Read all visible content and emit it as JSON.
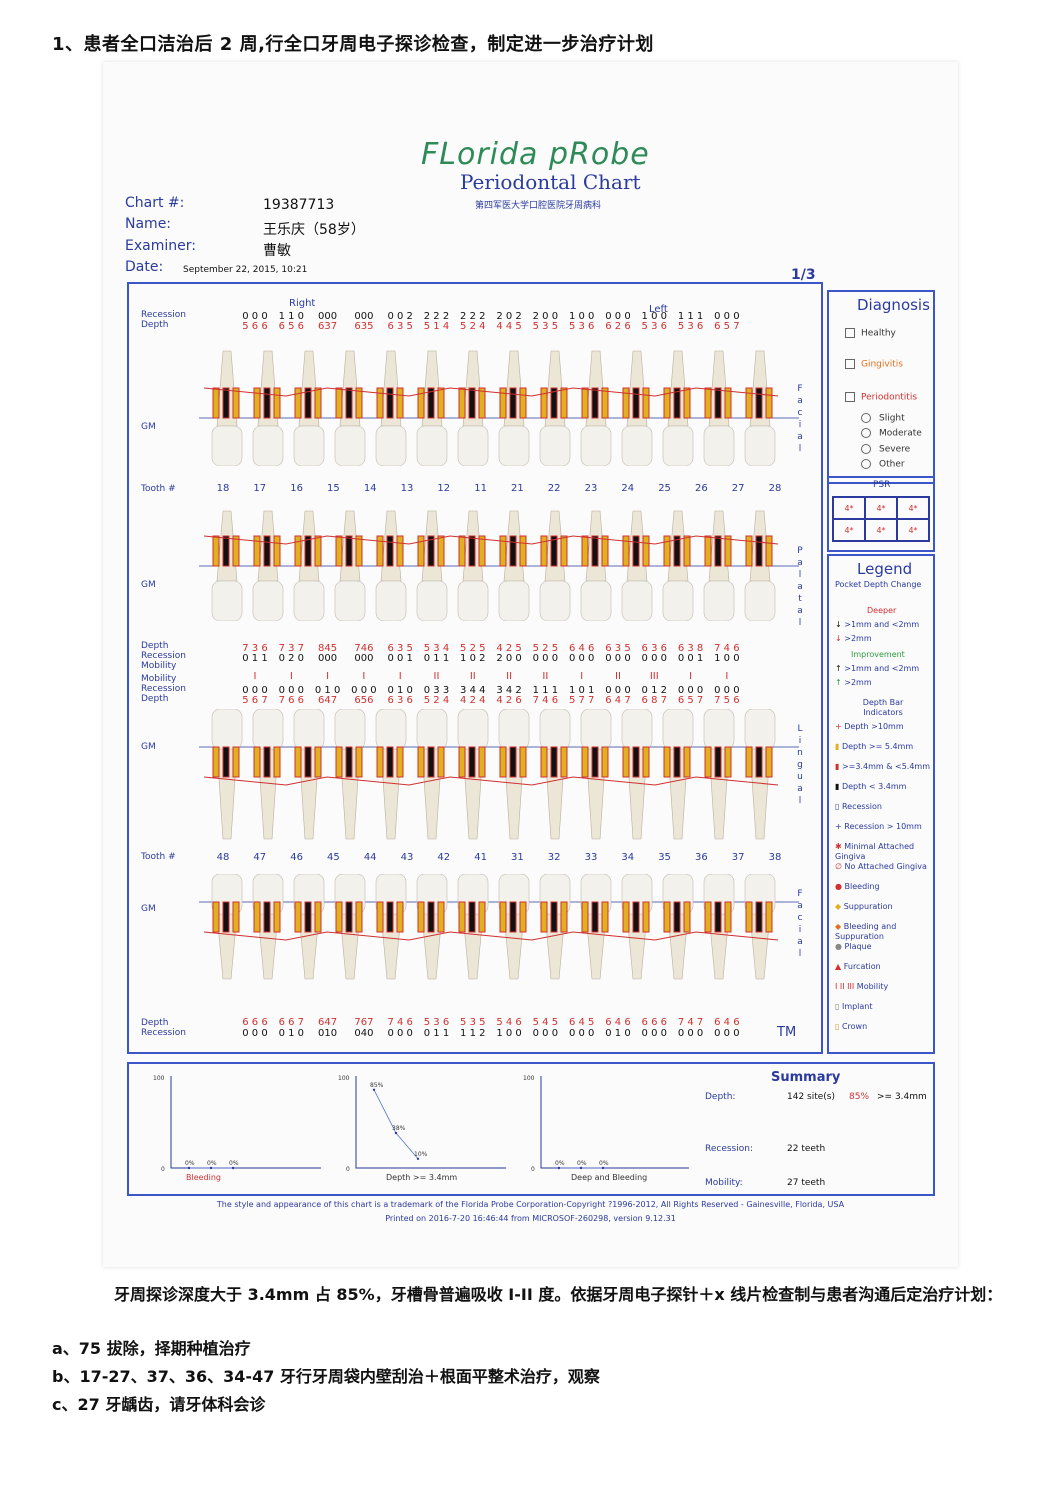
{
  "heading": "1、患者全口洁治后 2 周,行全口牙周电子探诊检查，制定进一步治疗计划",
  "chart": {
    "logo": "FLorida pRobe",
    "title": "Periodontal Chart",
    "hospital": "第四军医大学口腔医院牙周病科",
    "chart_no_label": "Chart #:",
    "chart_no": "19387713",
    "name_label": "Name:",
    "name": "王乐庆（58岁）",
    "examiner_label": "Examiner:",
    "examiner": "曹敏",
    "date_label": "Date:",
    "date": "September 22, 2015, 10:21",
    "page": "1/3",
    "tm": "TM"
  },
  "upper": {
    "labels": [
      "Recession",
      "Depth"
    ],
    "right": "Right",
    "left": "Left",
    "recession": [
      "0 0 0",
      "1 1 0",
      "000",
      "000",
      "0 0 2",
      "2 2 2",
      "2 2 2",
      "2 0 2",
      "2 0 0",
      "1 0 0",
      "0 0 0",
      "1 0 0",
      "1 1 1",
      "0 0 0"
    ],
    "depth": [
      "5 6 6",
      "6 5 6",
      "637",
      "635",
      "6 3 5",
      "5 1 4",
      "5 2 4",
      "4 4 5",
      "5 3 5",
      "5 3 6",
      "6 2 6",
      "5 3 6",
      "5 3 6",
      "6 5 7"
    ],
    "gm": "GM",
    "tooth_label": "Tooth #",
    "teeth": [
      "18",
      "17",
      "16",
      "15",
      "14",
      "13",
      "12",
      "11",
      "21",
      "22",
      "23",
      "24",
      "25",
      "26",
      "27",
      "28"
    ],
    "palatal_gm": "GM",
    "p_depth": [
      "7 3 6",
      "7 3 7",
      "845",
      "746",
      "6 3 5",
      "5 3 4",
      "5 2 5",
      "4 2 5",
      "5 2 5",
      "6 4 6",
      "6 3 5",
      "6 3 6",
      "6 3 8",
      "7 4 6"
    ],
    "p_recession": [
      "0 1 1",
      "0 2 0",
      "000",
      "000",
      "0 0 1",
      "0 1 1",
      "1 0 2",
      "2 0 0",
      "0 0 0",
      "0 0 0",
      "0 0 0",
      "0 0 0",
      "0 0 1",
      "1 0 0"
    ],
    "p_labels": [
      "Depth",
      "Recession",
      "Mobility"
    ]
  },
  "lower": {
    "mob_labels": [
      "Mobility",
      "Recession",
      "Depth"
    ],
    "mobility": [
      "I",
      "I",
      "I",
      "I",
      "I",
      "II",
      "II",
      "II",
      "II",
      "I",
      "II",
      "III",
      "I",
      "I"
    ],
    "l_recession": [
      "0 0 0",
      "0 0 0",
      "0 1 0",
      "0 0 0",
      "0 1 0",
      "0 3 3",
      "3 4 4",
      "3 4 2",
      "1 1 1",
      "1 0 1",
      "0 0 0",
      "0 1 2",
      "0 0 0",
      "0 0 0"
    ],
    "l_depth": [
      "5 6 7",
      "7 6 6",
      "647",
      "656",
      "6 3 6",
      "5 2 4",
      "4 2 4",
      "4 2 6",
      "7 4 6",
      "5 7 7",
      "6 4 7",
      "6 8 7",
      "6 5 7",
      "7 5 6"
    ],
    "gm": "GM",
    "tooth_label": "Tooth #",
    "teeth": [
      "48",
      "47",
      "46",
      "45",
      "44",
      "43",
      "42",
      "41",
      "31",
      "32",
      "33",
      "34",
      "35",
      "36",
      "37",
      "38"
    ],
    "facial_gm": "GM",
    "f_labels": [
      "Depth",
      "Recession"
    ],
    "f_depth": [
      "6 6 6",
      "6 6 7",
      "647",
      "767",
      "7 4 6",
      "5 3 6",
      "5 3 5",
      "5 4 6",
      "5 4 5",
      "6 4 5",
      "6 4 6",
      "6 6 6",
      "7 4 7",
      "6 4 6"
    ],
    "f_recession": [
      "0 0 0",
      "0 1 0",
      "010",
      "040",
      "0 0 0",
      "0 1 1",
      "1 1 2",
      "1 0 0",
      "0 0 0",
      "0 0 0",
      "0 1 0",
      "0 0 0",
      "0 0 0",
      "0 0 0"
    ]
  },
  "side_labels": {
    "facial": "Facial",
    "palatal": "Palatal",
    "lingual": "Lingual"
  },
  "diagnosis": {
    "title": "Diagnosis",
    "healthy": "Healthy",
    "gingivitis": "Gingivitis",
    "periodontitis": "Periodontitis",
    "levels": [
      "Slight",
      "Moderate",
      "Severe",
      "Other"
    ]
  },
  "psr": {
    "title": "PSR",
    "cells": [
      "4*",
      "4*",
      "4*",
      "4*",
      "4*",
      "4*"
    ]
  },
  "legend": {
    "title": "Legend",
    "subtitle": "Pocket Depth Change",
    "deeper": "Deeper",
    "deeper_items": [
      ">1mm and <2mm",
      ">2mm"
    ],
    "improvement": "Improvement",
    "improvement_items": [
      ">1mm and <2mm",
      ">2mm"
    ],
    "bar_title": "Depth Bar Indicators",
    "items": [
      "Depth >10mm",
      "Depth >= 5.4mm",
      ">=3.4mm & <5.4mm",
      "Depth < 3.4mm",
      "Recession",
      "Recession > 10mm",
      "Minimal Attached Gingiva",
      "No Attached Gingiva",
      "Bleeding",
      "Suppuration",
      "Bleeding and Suppuration",
      "Plaque",
      "Furcation",
      "Mobility",
      "Implant",
      "Crown"
    ],
    "mob_glyph": "I II III"
  },
  "summary": {
    "title": "Summary",
    "depth_label": "Depth:",
    "depth_sites": "142 site(s)",
    "depth_pct": "85%",
    "depth_thr": ">= 3.4mm",
    "recession_label": "Recession:",
    "recession_val": "22 teeth",
    "mobility_label": "Mobility:",
    "mobility_val": "27 teeth"
  },
  "chart_data": [
    {
      "type": "line",
      "title": "",
      "xlabel": "Bleeding",
      "ylim": [
        0,
        100
      ],
      "ytick_labels": [
        "100",
        "0"
      ],
      "point_labels": [
        "0%",
        "0%",
        "0%"
      ],
      "values": [
        0,
        0,
        0
      ]
    },
    {
      "type": "line",
      "title": "",
      "xlabel": "Depth >= 3.4mm",
      "ylim": [
        0,
        100
      ],
      "ytick_labels": [
        "100",
        "0"
      ],
      "point_labels": [
        "85%",
        "38%",
        "10%"
      ],
      "values": [
        85,
        38,
        10
      ]
    },
    {
      "type": "line",
      "title": "",
      "xlabel": "Deep and Bleeding",
      "ylim": [
        0,
        100
      ],
      "ytick_labels": [
        "100",
        "0"
      ],
      "point_labels": [
        "0%",
        "0%",
        "0%"
      ],
      "values": [
        0,
        0,
        0
      ]
    }
  ],
  "footer": {
    "line1": "The style and appearance of this chart is a trademark of the Florida Probe Corporation-Copyright ?1996-2012, All Rights Reserved - Gainesville, Florida, USA",
    "line2": "Printed on 2016-7-20 16:46:44 from MICROSOF-260298, version 9.12.31"
  },
  "text_after": {
    "p1": "牙周探诊深度大于 3.4mm 占 85%，牙槽骨普遍吸收 I-II 度。依据牙周电子探针＋x 线片检查制与患者沟通后定治疗计划：",
    "a": "a、75 拔除，择期种植治疗",
    "b": "b、17-27、37、36、34-47 牙行牙周袋内壁刮治＋根面平整术治疗，观察",
    "c": "c、27 牙龋齿，请牙体科会诊"
  }
}
